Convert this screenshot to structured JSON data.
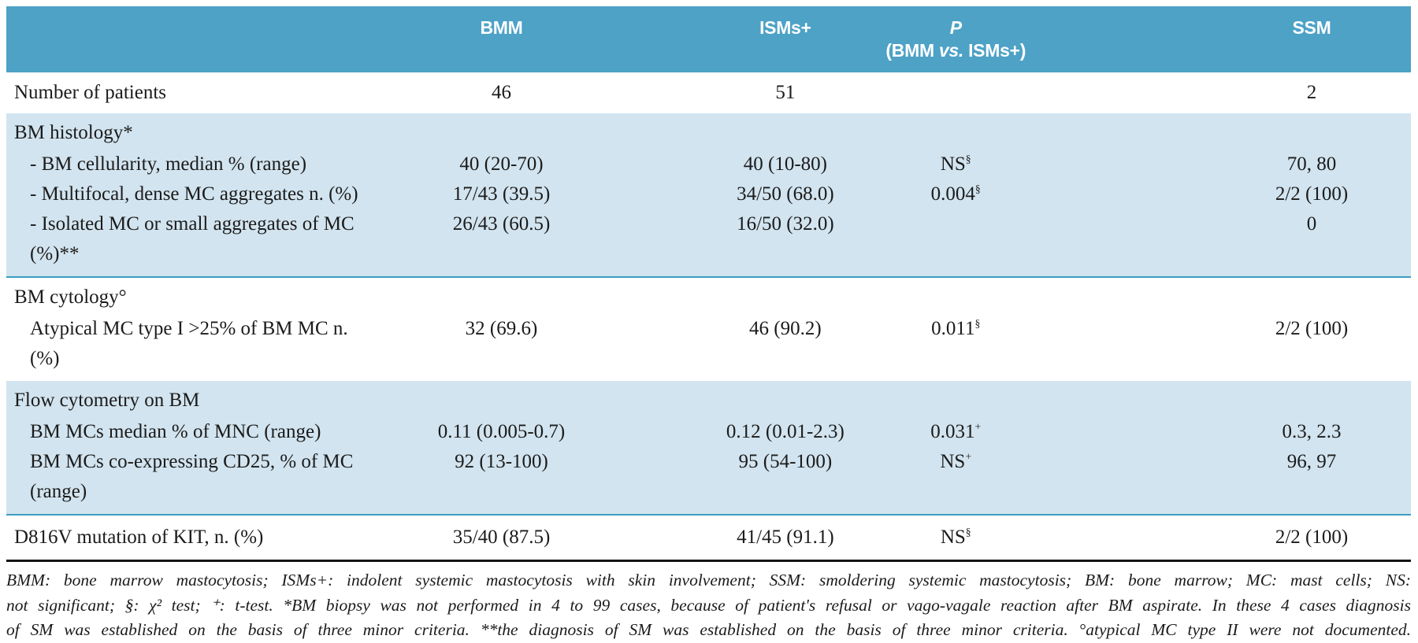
{
  "colors": {
    "header_bg": "#4DA2C6",
    "section_bg": "#D2E4EF",
    "section_divider": "#3D9CC2",
    "bottom_rule": "#141414",
    "header_text": "#FFFFFF",
    "body_text": "#1B1B1B"
  },
  "header": {
    "bmm": "BMM",
    "isms": "ISMs+",
    "p_line1": "P",
    "p_line2_pre": "(BMM ",
    "p_line2_vs": "vs.",
    "p_line2_post": " ISMs+)",
    "ssm": "SSM"
  },
  "rows": [
    {
      "label": "Number of patients",
      "bmm": "46",
      "isms": "51",
      "p": "",
      "p_sup": "",
      "ssm": "2"
    },
    {
      "label": "BM histology*"
    },
    {
      "label": "- BM cellularity, median % (range)",
      "bmm": "40 (20-70)",
      "isms": "40 (10-80)",
      "p": "NS",
      "p_sup": "§",
      "ssm": "70, 80"
    },
    {
      "label": "- Multifocal, dense MC aggregates n. (%)",
      "bmm": "17/43 (39.5)",
      "isms": "34/50 (68.0)",
      "p": "0.004",
      "p_sup": "§",
      "ssm": "2/2 (100)"
    },
    {
      "label": "- Isolated MC or small aggregates of MC (%)**",
      "bmm": "26/43 (60.5)",
      "isms": "16/50 (32.0)",
      "p": "",
      "p_sup": "",
      "ssm": "0"
    },
    {
      "label": "BM cytology°"
    },
    {
      "label": "Atypical MC type I >25% of BM MC n. (%)",
      "bmm": "32 (69.6)",
      "isms": "46 (90.2)",
      "p": "0.011",
      "p_sup": "§",
      "ssm": "2/2 (100)"
    },
    {
      "label": "Flow cytometry on BM"
    },
    {
      "label": "BM MCs median % of MNC (range)",
      "bmm": "0.11 (0.005-0.7)",
      "isms": "0.12 (0.01-2.3)",
      "p": "0.031",
      "p_sup": "+",
      "ssm": "0.3, 2.3"
    },
    {
      "label": "BM MCs co-expressing CD25, % of MC (range)",
      "bmm": "92 (13-100)",
      "isms": "95 (54-100)",
      "p": "NS",
      "p_sup": "+",
      "ssm": "96, 97"
    },
    {
      "label": "D816V mutation of KIT, n. (%)",
      "bmm": "35/40 (87.5)",
      "isms": "41/45 (91.1)",
      "p": "NS",
      "p_sup": "§",
      "ssm": "2/2 (100)"
    }
  ],
  "footnote": {
    "line1": "BMM: bone marrow mastocytosis; ISMs+: indolent systemic mastocytosis with skin involvement; SSM: smoldering systemic mastocytosis; BM: bone marrow; MC: mast cells; NS:",
    "line2": "not significant; §: χ² test; ⁺: t-test. *BM biopsy was not performed in 4 to 99 cases, because of patient's refusal or vago-vagale reaction after BM aspirate. In these 4 cases diagnosis",
    "line3": "of SM was established on the basis of three minor criteria. **the diagnosis of SM was established on the basis of three minor criteria. °atypical MC type II were not documented."
  }
}
